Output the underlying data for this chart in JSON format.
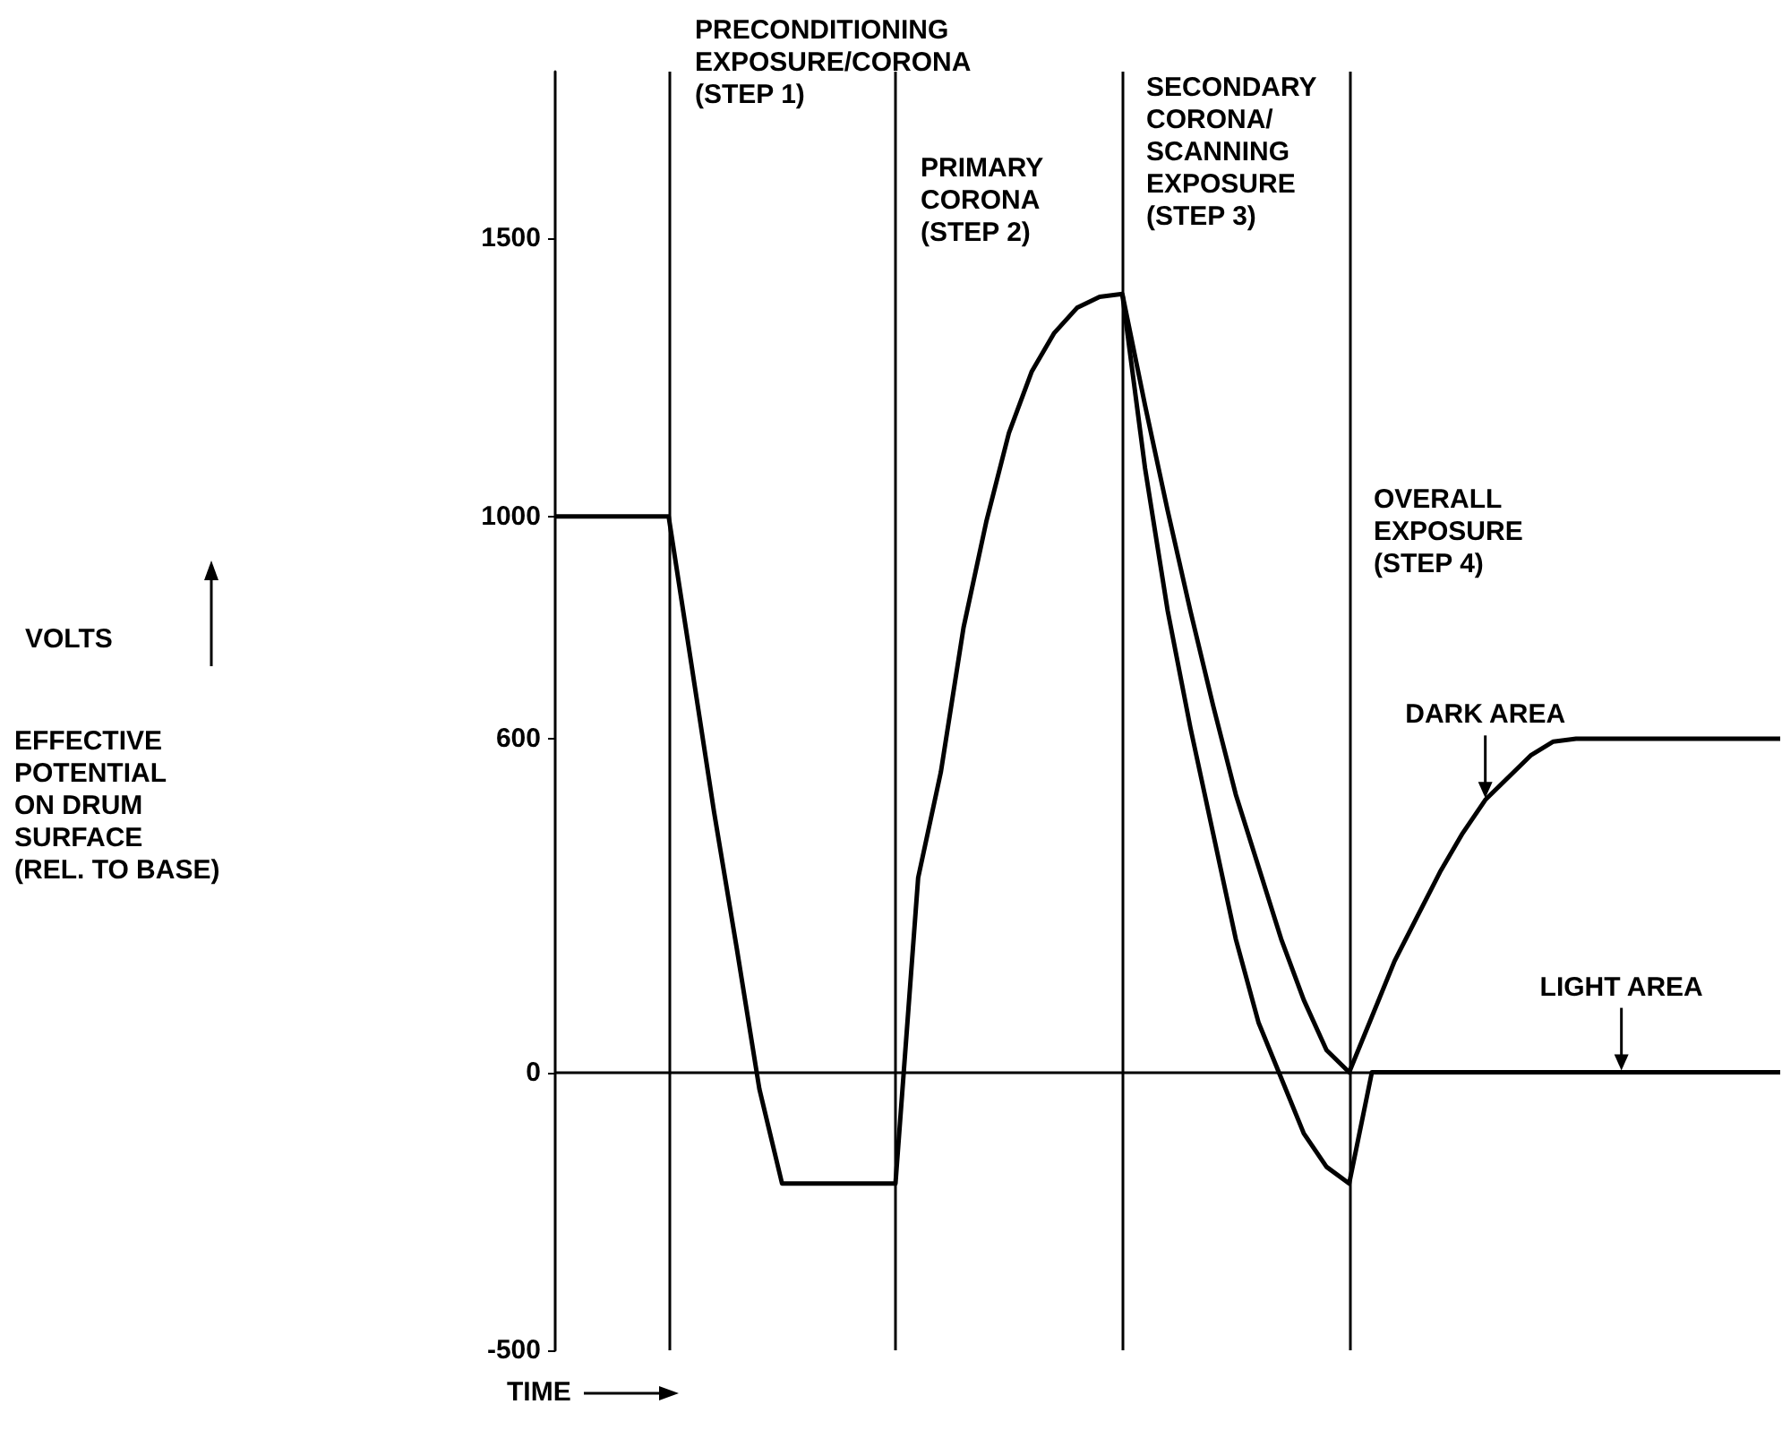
{
  "chart_data": {
    "type": "line",
    "xlabel": "TIME",
    "categories": [
      null,
      null,
      null,
      null,
      null,
      null,
      null,
      null,
      null,
      null,
      null,
      null,
      null,
      null,
      null,
      null,
      null,
      null,
      null,
      null,
      null,
      null,
      null,
      null,
      null,
      null,
      null,
      null,
      null,
      null,
      null,
      null,
      null,
      null,
      null,
      null,
      null,
      null,
      null,
      null,
      null,
      null,
      null,
      null,
      null,
      null,
      null,
      null,
      null,
      null,
      null,
      null,
      null,
      null,
      null
    ],
    "ylim": [
      -500,
      1800
    ],
    "yticks": [
      -500,
      0,
      600,
      1000,
      1500
    ],
    "tick_labels": "y",
    "grid": "x",
    "legend": false,
    "marker": "none",
    "line_style": "solid",
    "series": [
      {
        "name": "DARK AREA",
        "color": "#000000",
        "values": [
          1000,
          1000,
          1000,
          1000,
          1000,
          1000,
          735,
          469,
          224,
          -30,
          -200,
          -200,
          -200,
          -200,
          -200,
          -200,
          350,
          540,
          800,
          990,
          1150,
          1260,
          1330,
          1375,
          1395,
          1400,
          1200,
          1010,
          830,
          660,
          500,
          370,
          240,
          130,
          40,
          0,
          100,
          200,
          280,
          360,
          430,
          490,
          530,
          570,
          595,
          600,
          600,
          600,
          600,
          600,
          600,
          600,
          600,
          600,
          600
        ]
      },
      {
        "name": "LIGHT AREA",
        "color": "#000000",
        "values": [
          null,
          null,
          null,
          null,
          null,
          null,
          null,
          null,
          null,
          null,
          null,
          null,
          null,
          null,
          null,
          null,
          null,
          null,
          null,
          null,
          null,
          null,
          null,
          null,
          null,
          1400,
          1087,
          830,
          620,
          430,
          240,
          90,
          -10,
          -110,
          -170,
          -200,
          0,
          0,
          0,
          0,
          0,
          0,
          0,
          0,
          0,
          0,
          0,
          0,
          0,
          0,
          0,
          0,
          0,
          0,
          0
        ]
      }
    ],
    "ref_lines": [
      {
        "axis": "y",
        "value": 0,
        "color": "#000000"
      }
    ],
    "annotations": [
      "VOLTS",
      "PRECONDITIONING\nEXPOSURE/CORONA\n(STEP 1)",
      "PRIMARY\nCORONA\n(STEP 2)",
      "SECONDARY\nCORONA/\nSCANNING\nEXPOSURE\n(STEP 3)",
      "OVERALL\nEXPOSURE\n(STEP 4)",
      "EFFECTIVE\nPOTENTIAL\nON DRUM\nSURFACE\n(REL. TO BASE)"
    ]
  }
}
